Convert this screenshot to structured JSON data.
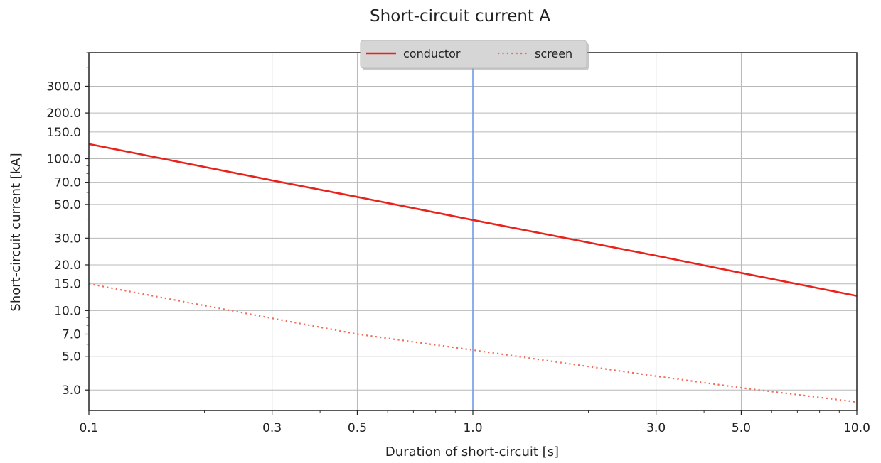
{
  "chart_data": {
    "type": "line",
    "title": "Short-circuit current A",
    "xlabel": "Duration of short-circuit [s]",
    "ylabel": "Short-circuit current [kA]",
    "xscale": "log",
    "yscale": "log",
    "xlim": [
      0.1,
      10.0
    ],
    "ylim": [
      2.2,
      500.0
    ],
    "x_ticks": [
      0.1,
      0.3,
      0.5,
      1.0,
      3.0,
      5.0,
      10.0
    ],
    "x_tick_labels": [
      "0.1",
      "0.3",
      "0.5",
      "1.0",
      "3.0",
      "5.0",
      "10.0"
    ],
    "y_ticks": [
      3.0,
      5.0,
      7.0,
      10.0,
      15.0,
      20.0,
      30.0,
      50.0,
      70.0,
      100.0,
      150.0,
      200.0,
      300.0
    ],
    "y_tick_labels": [
      "3.0",
      "5.0",
      "7.0",
      "10.0",
      "15.0",
      "20.0",
      "30.0",
      "50.0",
      "70.0",
      "100.0",
      "150.0",
      "200.0",
      "300.0"
    ],
    "grid": true,
    "legend": "top-center",
    "vertical_line": {
      "x": 1.0,
      "color": "#6f9be8"
    },
    "series": [
      {
        "name": "conductor",
        "color": "#e8231c",
        "style": "solid",
        "x": [
          0.1,
          0.3,
          0.5,
          1.0,
          3.0,
          5.0,
          10.0
        ],
        "y": [
          125.0,
          72.0,
          56.0,
          39.5,
          23.0,
          17.7,
          12.5
        ]
      },
      {
        "name": "screen",
        "color": "#f26b57",
        "style": "dotted",
        "x": [
          0.1,
          0.3,
          0.5,
          1.0,
          3.0,
          5.0,
          10.0
        ],
        "y": [
          15.0,
          8.9,
          7.0,
          5.5,
          3.7,
          3.1,
          2.5
        ]
      }
    ]
  }
}
